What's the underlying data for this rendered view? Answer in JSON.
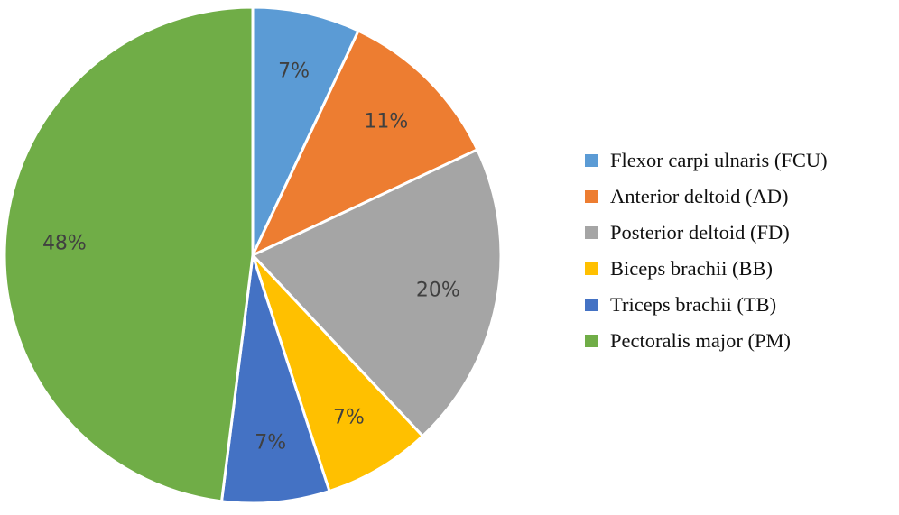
{
  "chart_data": {
    "type": "pie",
    "title": "",
    "start_angle_deg": 0,
    "direction": "clockwise",
    "labels_format": "percent",
    "legend_position": "right",
    "slices": [
      {
        "name": "Flexor carpi ulnaris (FCU)",
        "value": 7,
        "label": "7%",
        "color": "#5b9bd5"
      },
      {
        "name": "Anterior deltoid (AD)",
        "value": 11,
        "label": "11%",
        "color": "#ed7d31"
      },
      {
        "name": "Posterior deltoid (FD)",
        "value": 20,
        "label": "20%",
        "color": "#a5a5a5"
      },
      {
        "name": "Biceps brachii (BB)",
        "value": 7,
        "label": "7%",
        "color": "#ffc000"
      },
      {
        "name": "Triceps brachii (TB)",
        "value": 7,
        "label": "7%",
        "color": "#4472c4"
      },
      {
        "name": "Pectoralis major (PM)",
        "value": 48,
        "label": "48%",
        "color": "#70ad47"
      }
    ]
  }
}
